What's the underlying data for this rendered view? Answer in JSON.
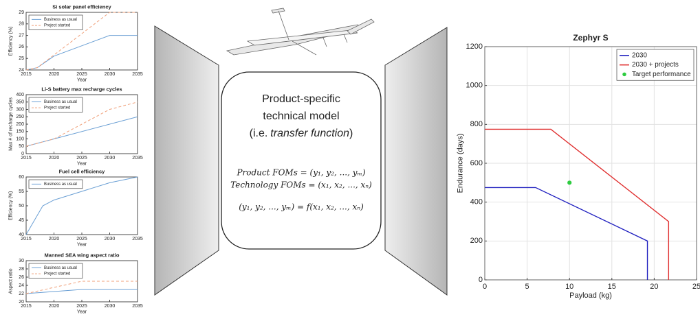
{
  "chart_data": [
    {
      "type": "line",
      "title": "Si solar panel efficiency",
      "xlabel": "Year",
      "ylabel": "Efficiency (%)",
      "xlim": [
        2015,
        2035
      ],
      "xticks": [
        2015,
        2020,
        2025,
        2030,
        2035
      ],
      "ylim": [
        24,
        29
      ],
      "yticks": [
        24,
        25,
        26,
        27,
        28,
        29
      ],
      "grid": false,
      "legend": "top-left",
      "series": [
        {
          "name": "Business as usual",
          "color": "#6a9fd4",
          "style": "solid",
          "x": [
            2015,
            2017,
            2020,
            2030,
            2035
          ],
          "values": [
            24,
            24.2,
            25.2,
            27,
            27
          ]
        },
        {
          "name": "Project started",
          "color": "#f0a07a",
          "style": "dashed",
          "x": [
            2015,
            2017,
            2020,
            2030,
            2035
          ],
          "values": [
            24,
            24.2,
            25.3,
            29,
            29
          ]
        }
      ]
    },
    {
      "type": "line",
      "title": "Li-S battery max recharge cycles",
      "xlabel": "Year",
      "ylabel": "Max # of recharge cycles",
      "xlim": [
        2015,
        2035
      ],
      "xticks": [
        2015,
        2020,
        2025,
        2030,
        2035
      ],
      "ylim": [
        0,
        400
      ],
      "yticks": [
        0,
        50,
        100,
        150,
        200,
        250,
        300,
        350,
        400
      ],
      "grid": false,
      "legend": "top-left",
      "series": [
        {
          "name": "Business as usual",
          "color": "#6a9fd4",
          "style": "solid",
          "x": [
            2015,
            2020,
            2035
          ],
          "values": [
            50,
            100,
            250
          ]
        },
        {
          "name": "Project started",
          "color": "#f0a07a",
          "style": "dashed",
          "x": [
            2015,
            2020,
            2030,
            2035
          ],
          "values": [
            50,
            100,
            300,
            350
          ]
        }
      ]
    },
    {
      "type": "line",
      "title": "Fuel cell efficiency",
      "xlabel": "Year",
      "ylabel": "Efficiency (%)",
      "xlim": [
        2015,
        2035
      ],
      "xticks": [
        2015,
        2020,
        2025,
        2030,
        2035
      ],
      "ylim": [
        40,
        60
      ],
      "yticks": [
        40,
        45,
        50,
        55,
        60
      ],
      "grid": false,
      "legend": "top-left",
      "series": [
        {
          "name": "Business as usual",
          "color": "#6a9fd4",
          "style": "solid",
          "x": [
            2015,
            2018,
            2020,
            2025,
            2030,
            2035
          ],
          "values": [
            40,
            50,
            52,
            55,
            58,
            60
          ]
        }
      ]
    },
    {
      "type": "line",
      "title": "Manned SEA wing aspect ratio",
      "xlabel": "Year",
      "ylabel": "Aspect ratio",
      "xlim": [
        2015,
        2035
      ],
      "xticks": [
        2015,
        2020,
        2025,
        2030,
        2035
      ],
      "ylim": [
        20,
        30
      ],
      "yticks": [
        20,
        22,
        24,
        26,
        28,
        30
      ],
      "grid": false,
      "legend": "top-left",
      "series": [
        {
          "name": "Business as usual",
          "color": "#6a9fd4",
          "style": "solid",
          "x": [
            2015,
            2025,
            2035
          ],
          "values": [
            22,
            23,
            23
          ]
        },
        {
          "name": "Project started",
          "color": "#f0a07a",
          "style": "dashed",
          "x": [
            2015,
            2025,
            2035
          ],
          "values": [
            22,
            25,
            25
          ]
        }
      ]
    },
    {
      "type": "line",
      "title": "Zephyr S",
      "xlabel": "Payload (kg)",
      "ylabel": "Endurance (days)",
      "xlim": [
        0,
        25
      ],
      "xticks": [
        0,
        5,
        10,
        15,
        20,
        25
      ],
      "ylim": [
        0,
        1200
      ],
      "yticks": [
        0,
        200,
        400,
        600,
        800,
        1000,
        1200
      ],
      "grid": true,
      "legend": "top-right",
      "series": [
        {
          "name": "2030",
          "color": "#2222c0",
          "style": "solid",
          "x": [
            0,
            6,
            19.2,
            19.2
          ],
          "values": [
            475,
            475,
            200,
            0
          ]
        },
        {
          "name": "2030 + projects",
          "color": "#e03030",
          "style": "solid",
          "x": [
            0,
            7.8,
            21.7,
            21.7
          ],
          "values": [
            775,
            775,
            300,
            0
          ]
        },
        {
          "name": "Target performance",
          "color": "#2ecc40",
          "style": "marker",
          "x": [
            10
          ],
          "values": [
            500
          ]
        }
      ]
    }
  ],
  "diagram": {
    "title_lines": [
      "Product-specific",
      "technical model"
    ],
    "title_paren": [
      "(i.e.",
      "transfer function",
      ")"
    ],
    "equations": [
      "Product FOMs = (y₁, y₂, ..., yₘ)",
      "Technology FOMs = (x₁, x₂, ..., xₙ)",
      "(y₁, y₂, ..., yₘ) = f(x₁, x₂, ..., xₙ)"
    ]
  }
}
